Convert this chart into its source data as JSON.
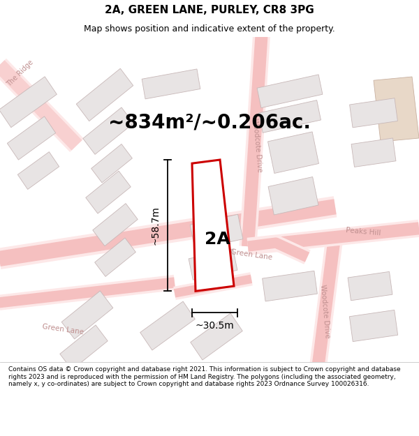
{
  "title": "2A, GREEN LANE, PURLEY, CR8 3PG",
  "subtitle": "Map shows position and indicative extent of the property.",
  "area_text": "~834m²/~0.206ac.",
  "label_2a": "2A",
  "dim_height": "~58.7m",
  "dim_width": "~30.5m",
  "footer": "Contains OS data © Crown copyright and database right 2021. This information is subject to Crown copyright and database rights 2023 and is reproduced with the permission of HM Land Registry. The polygons (including the associated geometry, namely x, y co-ordinates) are subject to Crown copyright and database rights 2023 Ordnance Survey 100026316.",
  "road_color": "#f5c0c0",
  "road_fill": "#faf0f0",
  "building_fill": "#e8e4e4",
  "building_edge": "#c8b8b8",
  "highlight_fill": "#ffffff",
  "highlight_edge": "#cc0000",
  "map_bg": "#ffffff",
  "title_fontsize": 11,
  "subtitle_fontsize": 9,
  "area_fontsize": 20,
  "label_fontsize": 18,
  "dim_fontsize": 10,
  "road_label_color": "#c09090",
  "annotation_color": "#000000"
}
